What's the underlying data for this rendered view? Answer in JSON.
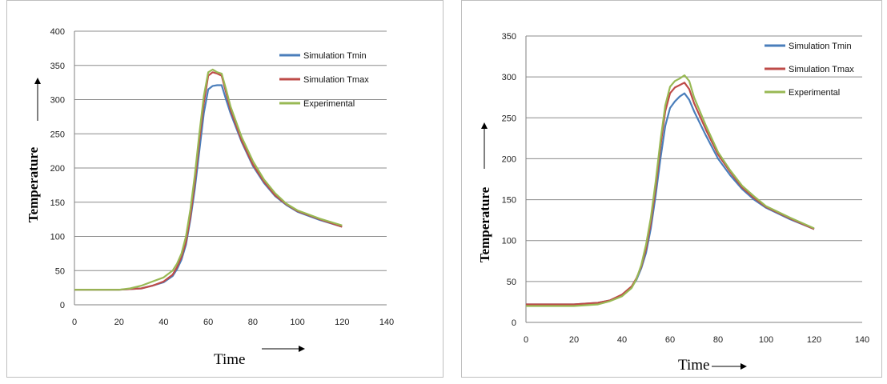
{
  "chart_data": [
    {
      "type": "line",
      "xlabel": "Time",
      "ylabel": "Temperature",
      "xlim": [
        0,
        140
      ],
      "ylim": [
        0,
        400
      ],
      "xticks": [
        0,
        20,
        40,
        60,
        80,
        100,
        120,
        140
      ],
      "yticks": [
        0,
        50,
        100,
        150,
        200,
        250,
        300,
        350,
        400
      ],
      "grid": true,
      "legend_position": "top-right",
      "series": [
        {
          "name": "Simulation Tmin",
          "color": "#4a7ebb",
          "x": [
            0,
            20,
            30,
            35,
            40,
            44,
            46,
            48,
            50,
            52,
            54,
            56,
            58,
            60,
            62,
            64,
            66,
            68,
            70,
            75,
            80,
            85,
            90,
            95,
            100,
            110,
            120
          ],
          "y": [
            22,
            22,
            24,
            28,
            33,
            42,
            52,
            66,
            88,
            125,
            170,
            225,
            280,
            315,
            320,
            321,
            321,
            300,
            280,
            238,
            203,
            178,
            159,
            146,
            136,
            124,
            114
          ]
        },
        {
          "name": "Simulation Tmax",
          "color": "#be4b48",
          "x": [
            0,
            20,
            30,
            35,
            40,
            44,
            46,
            48,
            50,
            52,
            54,
            56,
            58,
            60,
            62,
            64,
            66,
            68,
            70,
            75,
            80,
            85,
            90,
            95,
            100,
            110,
            120
          ],
          "y": [
            22,
            22,
            24,
            28,
            34,
            44,
            55,
            70,
            92,
            130,
            180,
            240,
            295,
            335,
            340,
            338,
            335,
            310,
            285,
            240,
            205,
            180,
            160,
            147,
            137,
            125,
            114
          ]
        },
        {
          "name": "Experimental",
          "color": "#98b954",
          "x": [
            0,
            20,
            25,
            30,
            35,
            40,
            44,
            46,
            48,
            50,
            52,
            54,
            56,
            58,
            60,
            62,
            64,
            66,
            68,
            70,
            75,
            80,
            85,
            90,
            95,
            100,
            110,
            120
          ],
          "y": [
            22,
            22,
            24,
            28,
            34,
            40,
            50,
            60,
            75,
            100,
            140,
            190,
            250,
            305,
            340,
            344,
            340,
            338,
            315,
            290,
            245,
            210,
            183,
            163,
            148,
            138,
            126,
            116
          ]
        }
      ]
    },
    {
      "type": "line",
      "xlabel": "Time",
      "ylabel": "Temperature",
      "xlim": [
        0,
        140
      ],
      "ylim": [
        0,
        350
      ],
      "xticks": [
        0,
        20,
        40,
        60,
        80,
        100,
        120,
        140
      ],
      "yticks": [
        0,
        50,
        100,
        150,
        200,
        250,
        300,
        350
      ],
      "grid": true,
      "legend_position": "top-right",
      "series": [
        {
          "name": "Simulation Tmin",
          "color": "#4a7ebb",
          "x": [
            0,
            20,
            30,
            35,
            40,
            44,
            46,
            48,
            50,
            52,
            54,
            56,
            58,
            60,
            62,
            64,
            66,
            68,
            70,
            75,
            80,
            85,
            90,
            95,
            100,
            110,
            120
          ],
          "y": [
            22,
            22,
            24,
            27,
            33,
            43,
            52,
            66,
            85,
            115,
            155,
            200,
            240,
            262,
            270,
            276,
            280,
            272,
            258,
            228,
            200,
            180,
            163,
            150,
            140,
            126,
            114
          ]
        },
        {
          "name": "Simulation Tmax",
          "color": "#be4b48",
          "x": [
            0,
            20,
            30,
            35,
            40,
            44,
            46,
            48,
            50,
            52,
            54,
            56,
            58,
            60,
            62,
            64,
            66,
            68,
            70,
            75,
            80,
            85,
            90,
            95,
            100,
            110,
            120
          ],
          "y": [
            22,
            22,
            24,
            27,
            34,
            44,
            54,
            68,
            90,
            122,
            165,
            215,
            258,
            280,
            287,
            290,
            293,
            285,
            268,
            235,
            205,
            184,
            165,
            152,
            141,
            127,
            114
          ]
        },
        {
          "name": "Experimental",
          "color": "#98b954",
          "x": [
            0,
            20,
            30,
            35,
            40,
            44,
            46,
            48,
            50,
            52,
            54,
            56,
            58,
            60,
            62,
            64,
            66,
            68,
            70,
            75,
            80,
            85,
            90,
            95,
            100,
            110,
            120
          ],
          "y": [
            20,
            20,
            22,
            26,
            32,
            42,
            53,
            70,
            95,
            128,
            172,
            222,
            265,
            288,
            295,
            298,
            302,
            295,
            275,
            240,
            208,
            186,
            167,
            154,
            142,
            128,
            115
          ]
        }
      ]
    }
  ]
}
